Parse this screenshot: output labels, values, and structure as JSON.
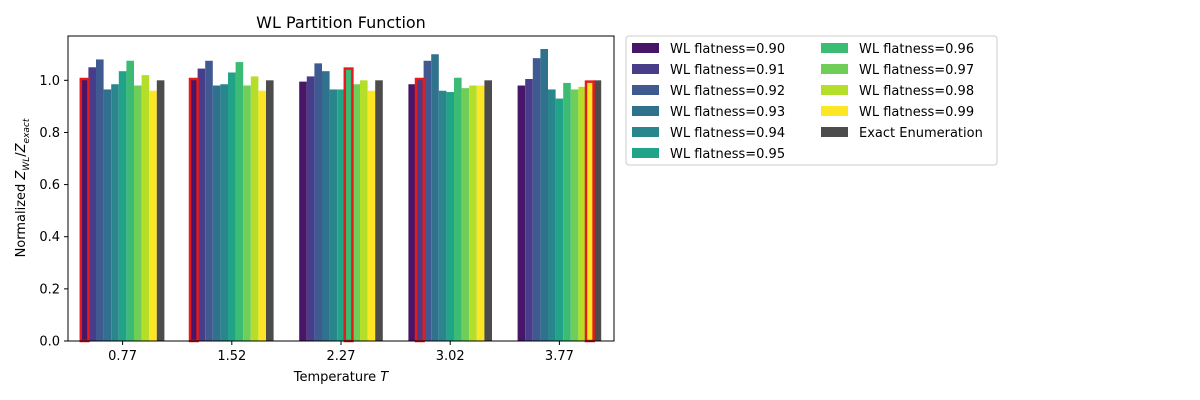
{
  "chart_data": {
    "type": "bar",
    "title": "WL Partition Function",
    "xlabel_text": "Temperature ",
    "xlabel_var": "T",
    "ylabel": {
      "prefix": "Normalized ",
      "num": "Z",
      "num_sub": "WL",
      "slash": "/",
      "den": "Z",
      "den_sub": "exact"
    },
    "categories": [
      "0.77",
      "1.52",
      "2.27",
      "3.02",
      "3.77"
    ],
    "ylim": [
      0,
      1.17
    ],
    "yticks": [
      "0.0",
      "0.2",
      "0.4",
      "0.6",
      "0.8",
      "1.0"
    ],
    "grid": false,
    "legend_placement": "outside-right, 2 columns",
    "series": [
      {
        "name": "WL flatness=0.90",
        "color": "#481668",
        "values": [
          1.005,
          1.005,
          0.995,
          0.985,
          0.98
        ]
      },
      {
        "name": "WL flatness=0.91",
        "color": "#483d8a",
        "values": [
          1.05,
          1.045,
          1.015,
          1.005,
          1.005
        ]
      },
      {
        "name": "WL flatness=0.92",
        "color": "#3f5a91",
        "values": [
          1.08,
          1.075,
          1.065,
          1.075,
          1.085
        ]
      },
      {
        "name": "WL flatness=0.93",
        "color": "#30718e",
        "values": [
          0.965,
          0.98,
          1.035,
          1.1,
          1.12
        ]
      },
      {
        "name": "WL flatness=0.94",
        "color": "#2a868d",
        "values": [
          0.985,
          0.985,
          0.965,
          0.96,
          0.965
        ]
      },
      {
        "name": "WL flatness=0.95",
        "color": "#20a387",
        "values": [
          1.035,
          1.03,
          0.965,
          0.955,
          0.93
        ]
      },
      {
        "name": "WL flatness=0.96",
        "color": "#3cbb75",
        "values": [
          1.075,
          1.07,
          1.045,
          1.01,
          0.99
        ]
      },
      {
        "name": "WL flatness=0.97",
        "color": "#6ece58",
        "values": [
          0.98,
          0.98,
          0.985,
          0.97,
          0.965
        ]
      },
      {
        "name": "WL flatness=0.98",
        "color": "#b5de2b",
        "values": [
          1.02,
          1.015,
          1.0,
          0.98,
          0.975
        ]
      },
      {
        "name": "WL flatness=0.99",
        "color": "#fde725",
        "values": [
          0.96,
          0.96,
          0.96,
          0.98,
          0.995
        ]
      },
      {
        "name": "Exact Enumeration",
        "color": "#4c4c4c",
        "values": [
          1.0,
          1.0,
          1.0,
          1.0,
          1.0
        ]
      }
    ],
    "highlighted": [
      {
        "category": "0.77",
        "series": "WL flatness=0.90",
        "outline_color": "#e41a1c"
      },
      {
        "category": "1.52",
        "series": "WL flatness=0.90",
        "outline_color": "#e41a1c"
      },
      {
        "category": "2.27",
        "series": "WL flatness=0.96",
        "outline_color": "#e41a1c"
      },
      {
        "category": "3.02",
        "series": "WL flatness=0.91",
        "outline_color": "#e41a1c"
      },
      {
        "category": "3.77",
        "series": "WL flatness=0.99",
        "outline_color": "#e41a1c"
      }
    ]
  }
}
